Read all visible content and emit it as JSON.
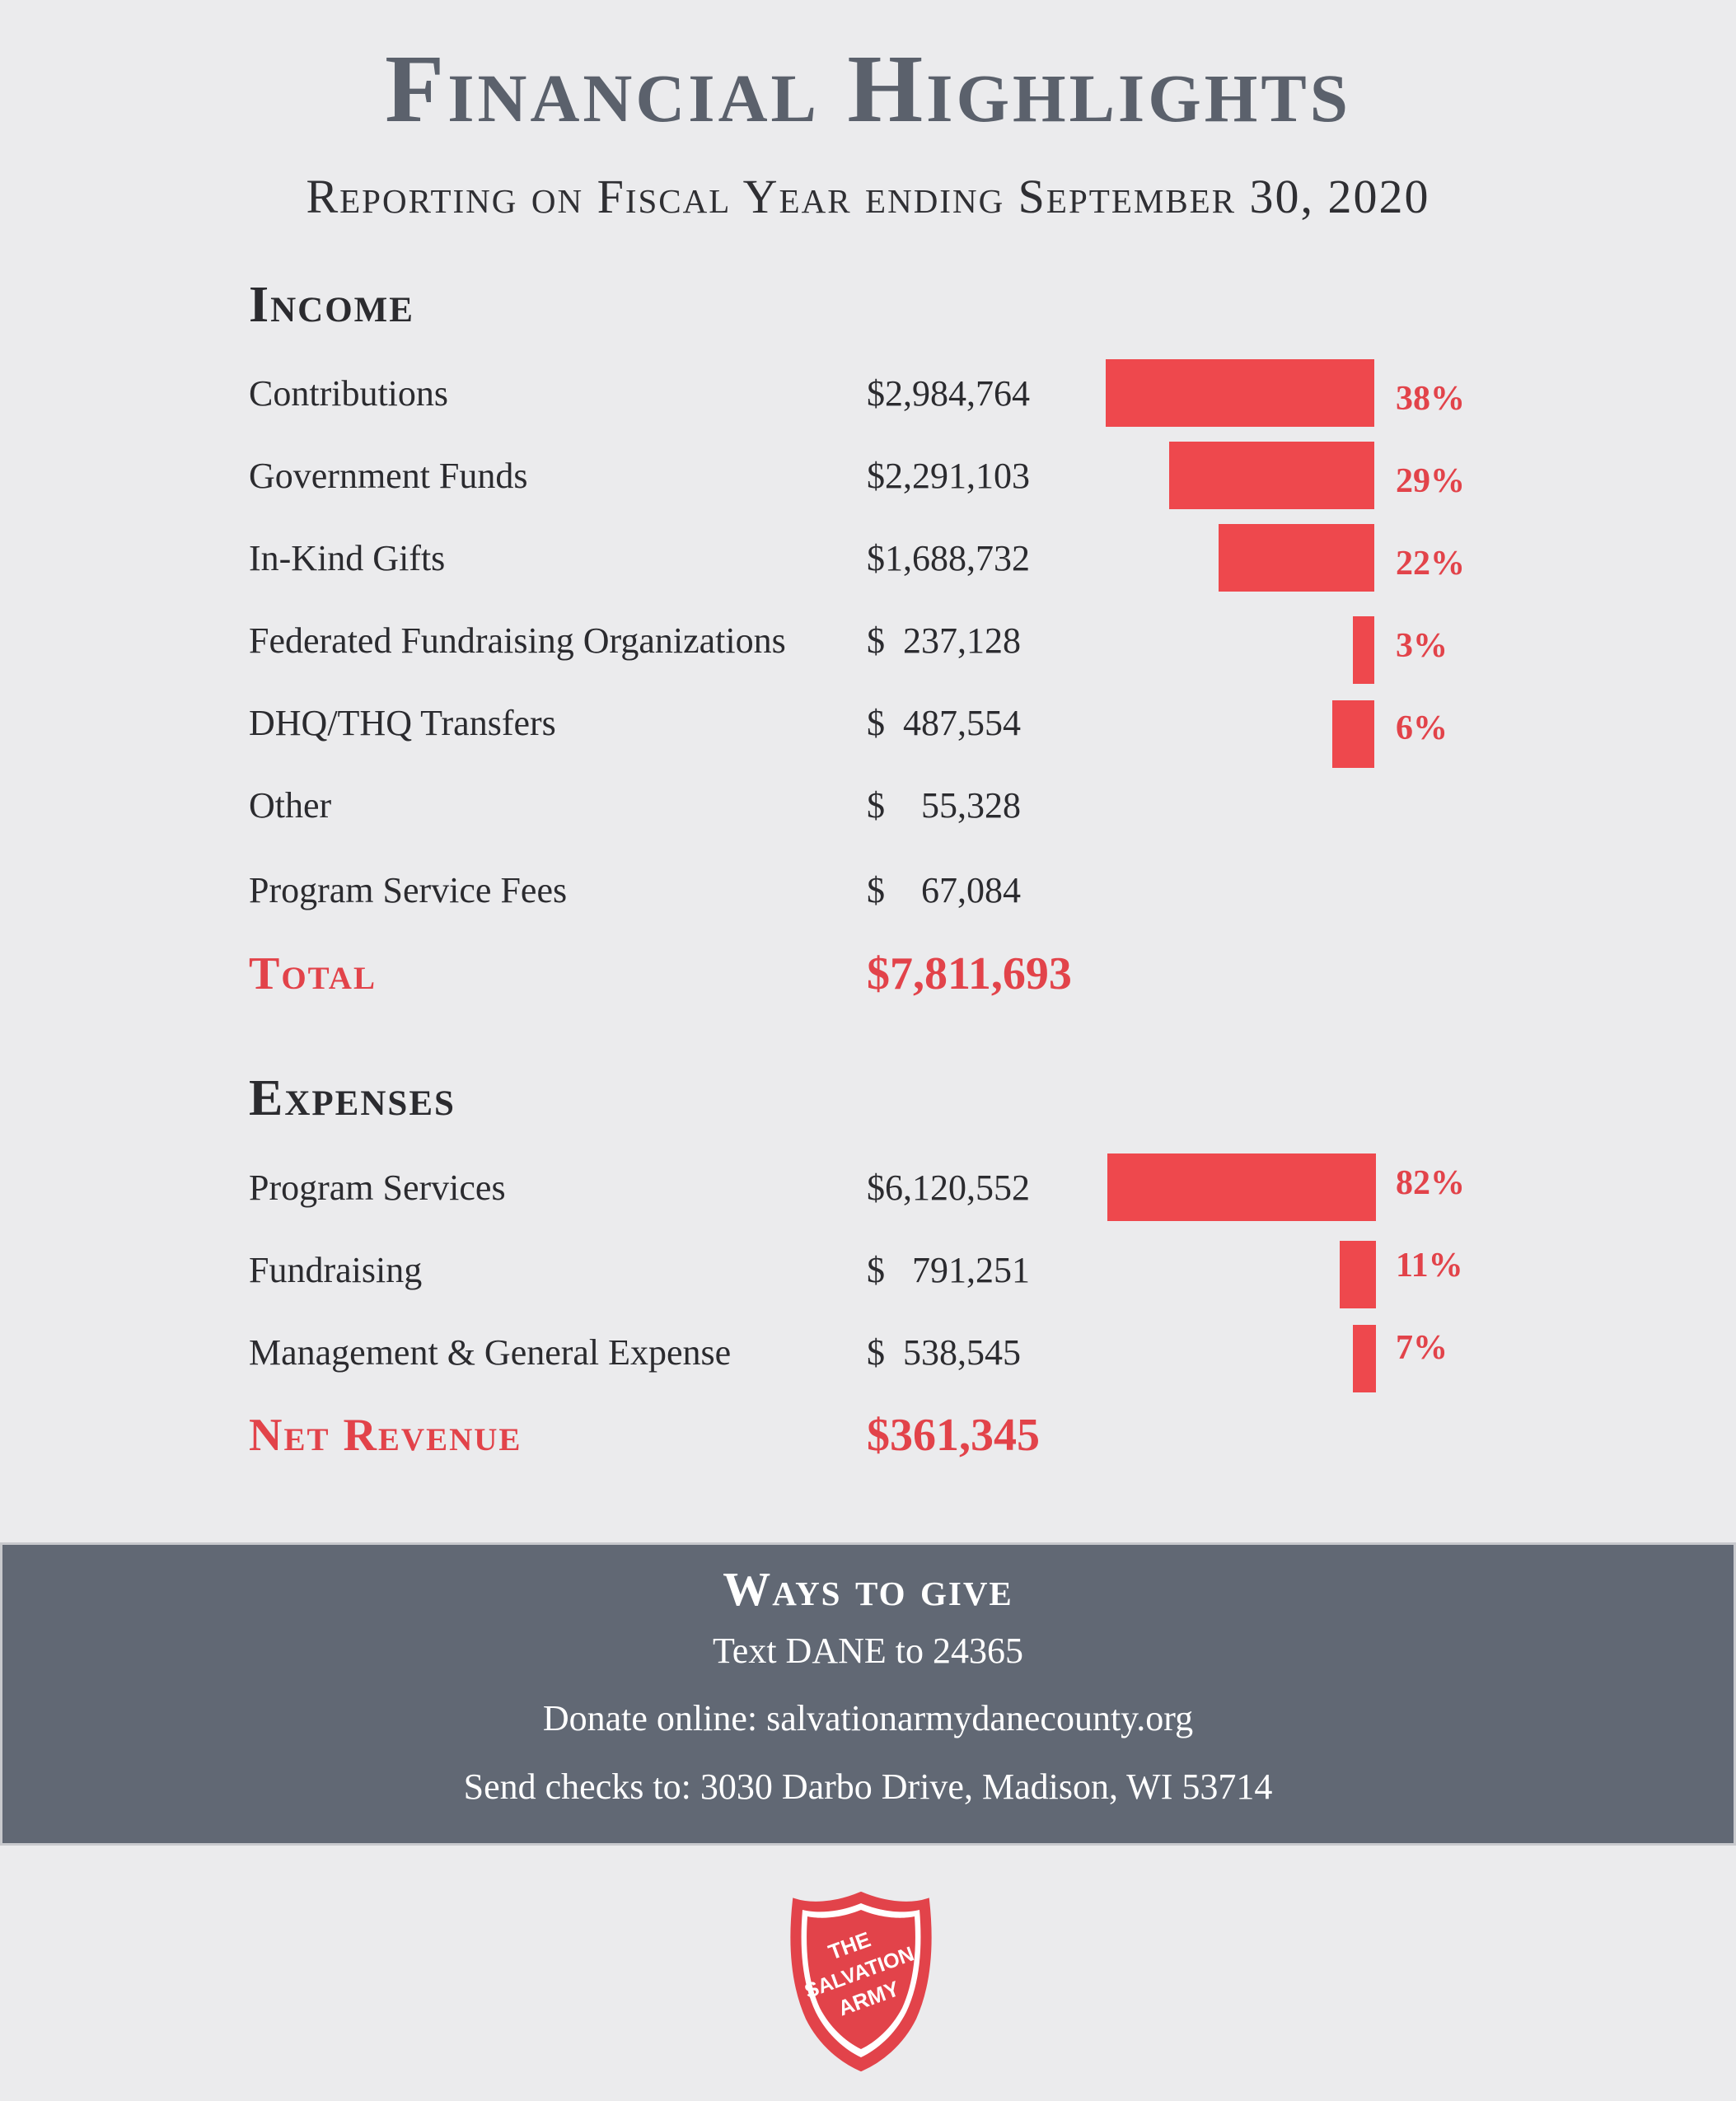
{
  "header": {
    "title": "Financial Highlights",
    "subtitle": "Reporting on Fiscal Year ending September 30, 2020"
  },
  "income": {
    "heading": "Income",
    "rows": [
      {
        "label": "Contributions",
        "amount": "$2,984,764",
        "percent": "38%",
        "share": 0.38
      },
      {
        "label": "Government Funds",
        "amount": "$2,291,103",
        "percent": "29%",
        "share": 0.29
      },
      {
        "label": "In-Kind Gifts",
        "amount": "$1,688,732",
        "percent": "22%",
        "share": 0.22
      },
      {
        "label": "Federated Fundraising Organizations",
        "amount": "$  237,128",
        "percent": "3%",
        "share": 0.03
      },
      {
        "label": "DHQ/THQ Transfers",
        "amount": "$  487,554",
        "percent": "6%",
        "share": 0.06
      },
      {
        "label": "Other",
        "amount": "$    55,328"
      },
      {
        "label": "Program Service Fees",
        "amount": "$    67,084"
      }
    ],
    "total_label": "Total",
    "total_amount": "$7,811,693"
  },
  "expenses": {
    "heading": "Expenses",
    "rows": [
      {
        "label": "Program Services",
        "amount": "$6,120,552",
        "percent": "82%",
        "share": 0.82
      },
      {
        "label": "Fundraising",
        "amount": "$   791,251",
        "percent": "11%",
        "share": 0.11
      },
      {
        "label": "Management & General Expense",
        "amount": "$  538,545",
        "percent": "7%",
        "share": 0.07
      }
    ],
    "total_label": "Net Revenue",
    "total_amount": "$361,345"
  },
  "ways_to_give": {
    "title": "Ways to give",
    "text_line": "Text DANE to 24365",
    "online_line": "Donate online: salvationarmydanecounty.org",
    "checks_line": "Send checks to: 3030 Darbo Drive, Madison, WI 53714"
  },
  "logo": {
    "line1": "THE",
    "line2": "SALVATION",
    "line3": "ARMY",
    "color": "#e2434a"
  },
  "colors": {
    "accent": "#ee484d",
    "title_gray": "#5b616c",
    "band_gray": "#616874",
    "background": "#ebebed"
  }
}
